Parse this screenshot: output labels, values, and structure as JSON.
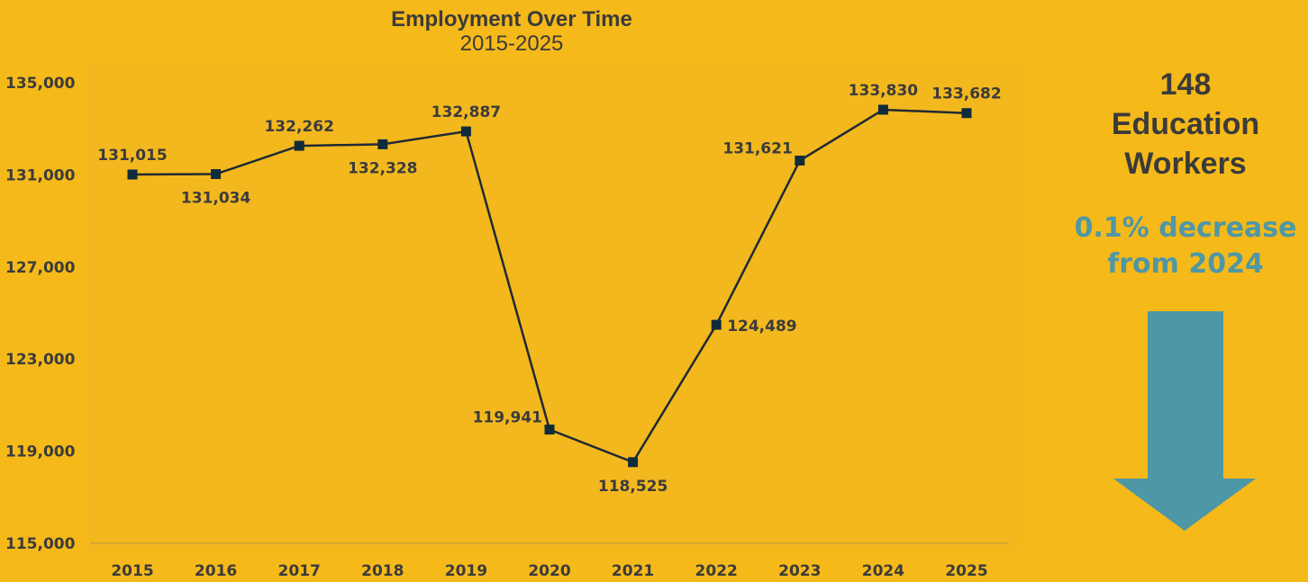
{
  "header": {
    "title": "Employment Over Time",
    "subtitle": "2015-2025"
  },
  "side_panel": {
    "count": "148",
    "label_line1": "Education",
    "label_line2": "Workers",
    "change_line1": "0.1% decrease",
    "change_line2": "from 2024",
    "arrow_icon": "down-arrow-icon",
    "arrow_color": "#4E97A6"
  },
  "colors": {
    "background": "#F5B919",
    "plot_background": "#F3B81E",
    "line": "#1F2A33",
    "marker": "#0F2C3A",
    "text": "#3B3B3B"
  },
  "chart_data": {
    "type": "line",
    "title": "Employment Over Time",
    "subtitle": "2015-2025",
    "xlabel": "",
    "ylabel": "",
    "x": [
      "2015",
      "2016",
      "2017",
      "2018",
      "2019",
      "2020",
      "2021",
      "2022",
      "2023",
      "2024",
      "2025"
    ],
    "series": [
      {
        "values": [
          131015,
          131034,
          132262,
          132328,
          132887,
          119941,
          118525,
          124489,
          131621,
          133830,
          133682
        ]
      }
    ],
    "data_labels": [
      "131,015",
      "131,034",
      "132,262",
      "132,328",
      "132,887",
      "119,941",
      "118,525",
      "124,489",
      "131,621",
      "133,830",
      "133,682"
    ],
    "label_positions": [
      "above",
      "below",
      "above",
      "below",
      "above",
      "left",
      "below",
      "right",
      "left",
      "above",
      "above"
    ],
    "ylim": [
      115000,
      135000
    ],
    "yticks": [
      115000,
      119000,
      123000,
      127000,
      131000,
      135000
    ],
    "ytick_labels": [
      "115,000",
      "119,000",
      "123,000",
      "127,000",
      "131,000",
      "135,000"
    ],
    "grid": false,
    "legend": "none",
    "marker": "square"
  }
}
